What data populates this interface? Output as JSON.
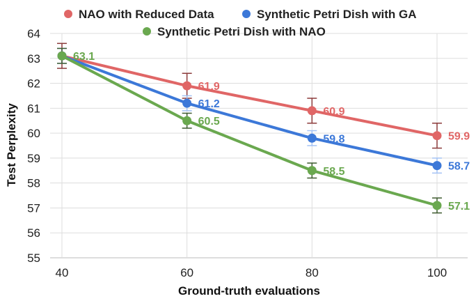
{
  "chart_data": {
    "type": "line",
    "title": "",
    "xlabel": "Ground-truth evaluations",
    "ylabel": "Test Perplexity",
    "x": [
      40,
      60,
      80,
      100
    ],
    "xticks": [
      "40",
      "60",
      "80",
      "100"
    ],
    "yticks": [
      "55",
      "56",
      "57",
      "58",
      "59",
      "60",
      "61",
      "62",
      "63",
      "64"
    ],
    "ylim": [
      55,
      64
    ],
    "xlim": [
      40,
      100
    ],
    "grid": true,
    "legend_position": "top",
    "series": [
      {
        "name": "NAO with Reduced Data",
        "color": "#e06666",
        "error_color": "#8b3a3a",
        "values": [
          63.1,
          61.9,
          60.9,
          59.9
        ],
        "errors": [
          0.5,
          0.5,
          0.5,
          0.5
        ],
        "labels": [
          "",
          "61.9",
          "60.9",
          "59.9"
        ]
      },
      {
        "name": "Synthetic Petri Dish with GA",
        "color": "#3c78d8",
        "error_color": "#a4c2f4",
        "values": [
          63.1,
          61.2,
          59.8,
          58.7
        ],
        "errors": [
          0.3,
          0.3,
          0.3,
          0.3
        ],
        "labels": [
          "",
          "61.2",
          "59.8",
          "58.7"
        ]
      },
      {
        "name": "Synthetic Petri Dish with NAO",
        "color": "#6aa84f",
        "error_color": "#3d5a2e",
        "values": [
          63.1,
          60.5,
          58.5,
          57.1
        ],
        "errors": [
          0.3,
          0.3,
          0.3,
          0.3
        ],
        "labels": [
          "63.1",
          "60.5",
          "58.5",
          "57.1"
        ]
      }
    ]
  }
}
